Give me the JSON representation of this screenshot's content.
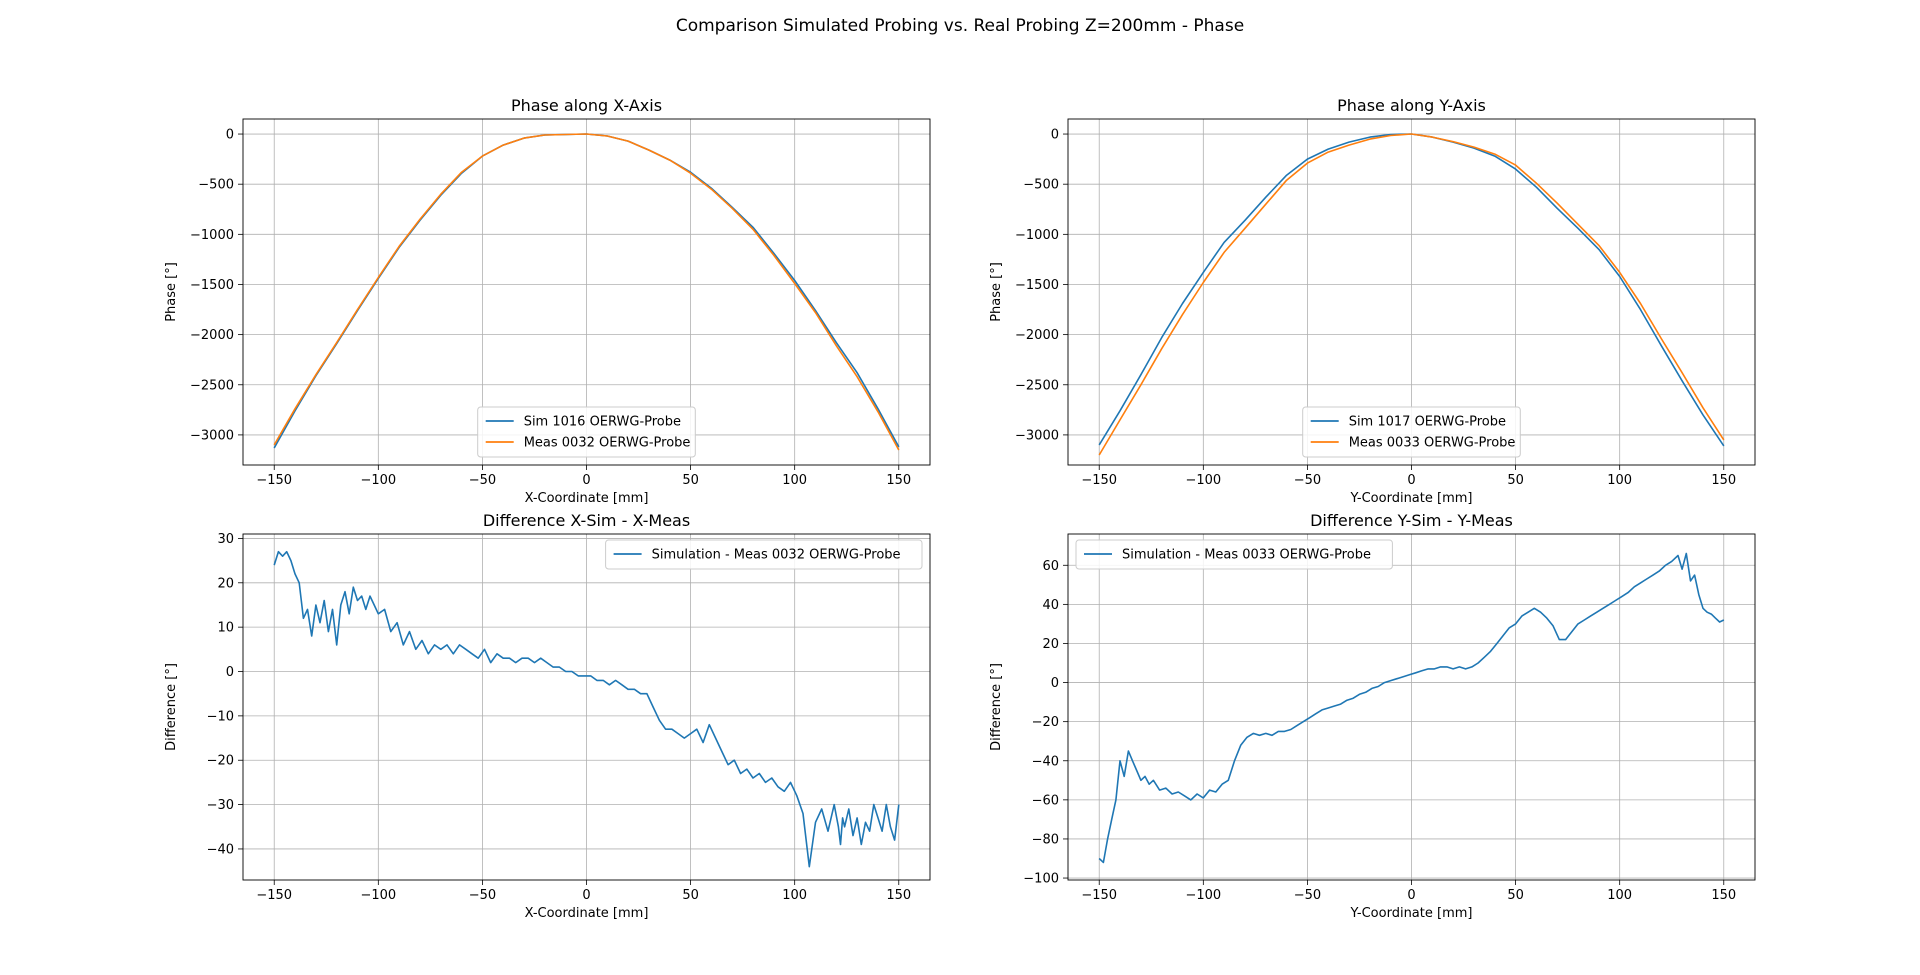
{
  "figure": {
    "suptitle": "Comparison Simulated Probing vs. Real Probing Z=200mm - Phase"
  },
  "colors": {
    "blue": "#1f77b4",
    "orange": "#ff7f0e",
    "grid": "#b0b0b0"
  },
  "chart_data": [
    {
      "type": "line",
      "title": "Phase along X-Axis",
      "xlabel": "X-Coordinate [mm]",
      "ylabel": "Phase [°]",
      "xlim": [
        -165,
        165
      ],
      "ylim": [
        -3300,
        150
      ],
      "xticks": [
        -150,
        -100,
        -50,
        0,
        50,
        100,
        150
      ],
      "yticks": [
        0,
        -500,
        -1000,
        -1500,
        -2000,
        -2500,
        -3000
      ],
      "grid": true,
      "legend": "lower-center",
      "series": [
        {
          "name": "Sim 1016 OERWG-Probe",
          "color": "#1f77b4",
          "x": [
            -150,
            -140,
            -130,
            -120,
            -110,
            -100,
            -90,
            -80,
            -70,
            -60,
            -50,
            -40,
            -30,
            -20,
            -10,
            0,
            10,
            20,
            30,
            40,
            50,
            60,
            70,
            80,
            90,
            100,
            110,
            120,
            130,
            140,
            150
          ],
          "y": [
            -3130,
            -2760,
            -2410,
            -2090,
            -1760,
            -1440,
            -1130,
            -860,
            -610,
            -390,
            -220,
            -110,
            -40,
            -10,
            -5,
            0,
            -20,
            -70,
            -160,
            -260,
            -380,
            -540,
            -730,
            -930,
            -1190,
            -1460,
            -1760,
            -2080,
            -2380,
            -2740,
            -3120
          ]
        },
        {
          "name": "Meas 0032 OERWG-Probe",
          "color": "#ff7f0e",
          "x": [
            -150,
            -140,
            -130,
            -120,
            -110,
            -100,
            -90,
            -80,
            -70,
            -60,
            -50,
            -40,
            -30,
            -20,
            -10,
            0,
            10,
            20,
            30,
            40,
            50,
            60,
            70,
            80,
            90,
            100,
            110,
            120,
            130,
            140,
            150
          ],
          "y": [
            -3100,
            -2740,
            -2400,
            -2080,
            -1750,
            -1430,
            -1120,
            -850,
            -600,
            -380,
            -220,
            -110,
            -40,
            -10,
            -5,
            0,
            -20,
            -70,
            -160,
            -260,
            -390,
            -550,
            -740,
            -950,
            -1210,
            -1490,
            -1780,
            -2110,
            -2420,
            -2770,
            -3150
          ]
        }
      ]
    },
    {
      "type": "line",
      "title": "Phase along Y-Axis",
      "xlabel": "Y-Coordinate [mm]",
      "ylabel": "Phase [°]",
      "xlim": [
        -165,
        165
      ],
      "ylim": [
        -3300,
        150
      ],
      "xticks": [
        -150,
        -100,
        -50,
        0,
        50,
        100,
        150
      ],
      "yticks": [
        0,
        -500,
        -1000,
        -1500,
        -2000,
        -2500,
        -3000
      ],
      "grid": true,
      "legend": "lower-center",
      "series": [
        {
          "name": "Sim 1017 OERWG-Probe",
          "color": "#1f77b4",
          "x": [
            -150,
            -140,
            -130,
            -120,
            -110,
            -100,
            -90,
            -80,
            -70,
            -60,
            -50,
            -40,
            -30,
            -20,
            -10,
            0,
            10,
            20,
            30,
            40,
            50,
            60,
            70,
            80,
            90,
            100,
            110,
            120,
            130,
            140,
            150
          ],
          "y": [
            -3100,
            -2760,
            -2400,
            -2030,
            -1690,
            -1380,
            -1080,
            -860,
            -630,
            -410,
            -250,
            -150,
            -80,
            -30,
            -5,
            0,
            -30,
            -80,
            -140,
            -220,
            -350,
            -530,
            -740,
            -940,
            -1150,
            -1420,
            -1750,
            -2110,
            -2460,
            -2800,
            -3110
          ]
        },
        {
          "name": "Meas 0033 OERWG-Probe",
          "color": "#ff7f0e",
          "x": [
            -150,
            -140,
            -130,
            -120,
            -110,
            -100,
            -90,
            -80,
            -70,
            -60,
            -50,
            -40,
            -30,
            -20,
            -10,
            0,
            10,
            20,
            30,
            40,
            50,
            60,
            70,
            80,
            90,
            100,
            110,
            120,
            130,
            140,
            150
          ],
          "y": [
            -3200,
            -2850,
            -2500,
            -2140,
            -1800,
            -1480,
            -1180,
            -940,
            -700,
            -460,
            -290,
            -180,
            -110,
            -50,
            -15,
            0,
            -30,
            -75,
            -130,
            -200,
            -310,
            -490,
            -690,
            -900,
            -1110,
            -1380,
            -1690,
            -2040,
            -2380,
            -2730,
            -3050
          ]
        }
      ]
    },
    {
      "type": "line",
      "title": "Difference X-Sim - X-Meas",
      "xlabel": "X-Coordinate [mm]",
      "ylabel": "Difference [°]",
      "xlim": [
        -165,
        165
      ],
      "ylim": [
        -47,
        31
      ],
      "xticks": [
        -150,
        -100,
        -50,
        0,
        50,
        100,
        150
      ],
      "yticks": [
        30,
        20,
        10,
        0,
        -10,
        -20,
        -30,
        -40
      ],
      "grid": true,
      "legend": "upper-right",
      "series": [
        {
          "name": "Simulation - Meas 0032 OERWG-Probe",
          "color": "#1f77b4",
          "x": [
            -150,
            -148,
            -146,
            -144,
            -142,
            -140,
            -138,
            -136,
            -134,
            -132,
            -130,
            -128,
            -126,
            -124,
            -122,
            -120,
            -118,
            -116,
            -114,
            -112,
            -110,
            -108,
            -106,
            -104,
            -102,
            -100,
            -97,
            -94,
            -91,
            -88,
            -85,
            -82,
            -79,
            -76,
            -73,
            -70,
            -67,
            -64,
            -61,
            -58,
            -55,
            -52,
            -49,
            -46,
            -43,
            -40,
            -37,
            -34,
            -31,
            -28,
            -25,
            -22,
            -19,
            -16,
            -13,
            -10,
            -7,
            -4,
            -1,
            2,
            5,
            8,
            11,
            14,
            17,
            20,
            23,
            26,
            29,
            32,
            35,
            38,
            41,
            44,
            47,
            50,
            53,
            56,
            59,
            62,
            65,
            68,
            71,
            74,
            77,
            80,
            83,
            86,
            89,
            92,
            95,
            98,
            101,
            104,
            107,
            110,
            113,
            116,
            119,
            121,
            122,
            123,
            124,
            126,
            128,
            130,
            132,
            134,
            136,
            138,
            140,
            142,
            144,
            146,
            148,
            150
          ],
          "y": [
            24,
            27,
            26,
            27,
            25,
            22,
            20,
            12,
            14,
            8,
            15,
            11,
            16,
            9,
            14,
            6,
            15,
            18,
            13,
            19,
            16,
            17,
            14,
            17,
            15,
            13,
            14,
            9,
            11,
            6,
            9,
            5,
            7,
            4,
            6,
            5,
            6,
            4,
            6,
            5,
            4,
            3,
            5,
            2,
            4,
            3,
            3,
            2,
            3,
            3,
            2,
            3,
            2,
            1,
            1,
            0,
            0,
            -1,
            -1,
            -1,
            -2,
            -2,
            -3,
            -2,
            -3,
            -4,
            -4,
            -5,
            -5,
            -8,
            -11,
            -13,
            -13,
            -14,
            -15,
            -14,
            -13,
            -16,
            -12,
            -15,
            -18,
            -21,
            -20,
            -23,
            -22,
            -24,
            -23,
            -25,
            -24,
            -26,
            -27,
            -25,
            -28,
            -32,
            -44,
            -34,
            -31,
            -36,
            -30,
            -35,
            -39,
            -33,
            -35,
            -31,
            -37,
            -33,
            -39,
            -34,
            -36,
            -30,
            -33,
            -36,
            -30,
            -35,
            -38,
            -30
          ]
        }
      ]
    },
    {
      "type": "line",
      "title": "Difference Y-Sim - Y-Meas",
      "xlabel": "Y-Coordinate [mm]",
      "ylabel": "Difference [°]",
      "xlim": [
        -165,
        165
      ],
      "ylim": [
        -101,
        76
      ],
      "xticks": [
        -150,
        -100,
        -50,
        0,
        50,
        100,
        150
      ],
      "yticks": [
        60,
        40,
        20,
        0,
        -20,
        -40,
        -60,
        -80,
        -100
      ],
      "grid": true,
      "legend": "upper-left",
      "series": [
        {
          "name": "Simulation - Meas 0033 OERWG-Probe",
          "color": "#1f77b4",
          "x": [
            -150,
            -148,
            -146,
            -144,
            -142,
            -140,
            -138,
            -136,
            -134,
            -132,
            -130,
            -128,
            -126,
            -124,
            -121,
            -118,
            -115,
            -112,
            -109,
            -106,
            -103,
            -100,
            -97,
            -94,
            -91,
            -88,
            -85,
            -82,
            -79,
            -76,
            -73,
            -70,
            -67,
            -64,
            -61,
            -58,
            -55,
            -52,
            -49,
            -46,
            -43,
            -40,
            -37,
            -34,
            -31,
            -28,
            -25,
            -22,
            -19,
            -16,
            -13,
            -10,
            -7,
            -4,
            -1,
            2,
            5,
            8,
            11,
            14,
            17,
            20,
            23,
            26,
            29,
            32,
            35,
            38,
            41,
            44,
            47,
            50,
            53,
            56,
            59,
            62,
            65,
            68,
            71,
            74,
            77,
            80,
            83,
            86,
            89,
            92,
            95,
            98,
            101,
            104,
            107,
            110,
            113,
            116,
            119,
            122,
            125,
            128,
            130,
            132,
            134,
            136,
            138,
            140,
            142,
            144,
            146,
            148,
            150
          ],
          "y": [
            -90,
            -92,
            -80,
            -70,
            -60,
            -40,
            -48,
            -35,
            -40,
            -45,
            -50,
            -48,
            -52,
            -50,
            -55,
            -54,
            -57,
            -56,
            -58,
            -60,
            -57,
            -59,
            -55,
            -56,
            -52,
            -50,
            -40,
            -32,
            -28,
            -26,
            -27,
            -26,
            -27,
            -25,
            -25,
            -24,
            -22,
            -20,
            -18,
            -16,
            -14,
            -13,
            -12,
            -11,
            -9,
            -8,
            -6,
            -5,
            -3,
            -2,
            0,
            1,
            2,
            3,
            4,
            5,
            6,
            7,
            7,
            8,
            8,
            7,
            8,
            7,
            8,
            10,
            13,
            16,
            20,
            24,
            28,
            30,
            34,
            36,
            38,
            36,
            33,
            29,
            22,
            22,
            26,
            30,
            32,
            34,
            36,
            38,
            40,
            42,
            44,
            46,
            49,
            51,
            53,
            55,
            57,
            60,
            62,
            65,
            58,
            66,
            52,
            55,
            45,
            38,
            36,
            35,
            33,
            31,
            32
          ]
        }
      ]
    }
  ]
}
